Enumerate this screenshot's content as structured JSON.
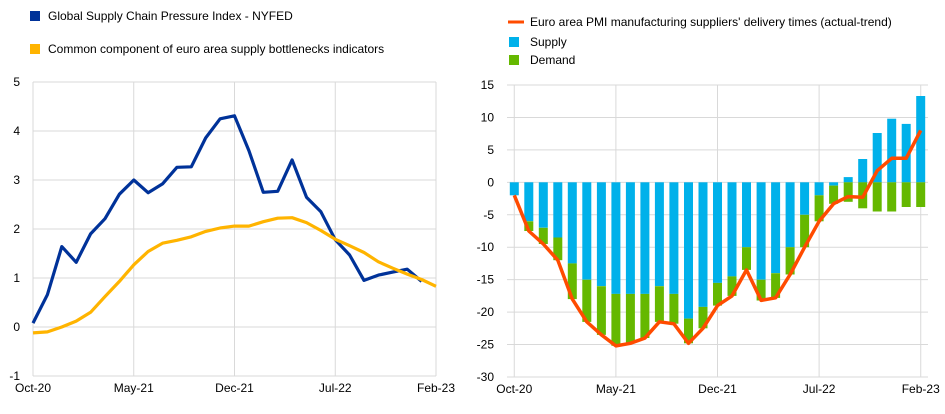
{
  "chart_data": [
    {
      "type": "line",
      "legend_position": "top-left",
      "grid": true,
      "x": [
        "Oct-20",
        "Nov-20",
        "Dec-20",
        "Jan-21",
        "Feb-21",
        "Mar-21",
        "Apr-21",
        "May-21",
        "Jun-21",
        "Jul-21",
        "Aug-21",
        "Sep-21",
        "Oct-21",
        "Nov-21",
        "Dec-21",
        "Jan-22",
        "Feb-22",
        "Mar-22",
        "Apr-22",
        "May-22",
        "Jun-22",
        "Jul-22",
        "Aug-22",
        "Sep-22",
        "Oct-22",
        "Nov-22",
        "Dec-22",
        "Jan-23",
        "Feb-23"
      ],
      "x_tick_labels": [
        "Oct-20",
        "May-21",
        "Dec-21",
        "Jul-22",
        "Feb-23"
      ],
      "ylim": [
        -1,
        5
      ],
      "y_ticks": [
        "-1",
        "0",
        "1",
        "2",
        "3",
        "4",
        "5"
      ],
      "series": [
        {
          "name": "Global Supply Chain Pressure Index - NYFED",
          "color": "#003299",
          "values": [
            0.08,
            0.66,
            1.64,
            1.32,
            1.9,
            2.21,
            2.71,
            3.0,
            2.74,
            2.92,
            3.26,
            3.27,
            3.86,
            4.25,
            4.31,
            3.6,
            2.75,
            2.77,
            3.41,
            2.65,
            2.35,
            1.78,
            1.47,
            0.95,
            1.06,
            1.12,
            1.18,
            0.93,
            null
          ]
        },
        {
          "name": "Common component of euro area supply bottlenecks indicators",
          "color": "#FFB400",
          "values": [
            -0.12,
            -0.1,
            0.0,
            0.12,
            0.3,
            0.62,
            0.93,
            1.27,
            1.54,
            1.71,
            1.77,
            1.84,
            1.95,
            2.02,
            2.06,
            2.06,
            2.15,
            2.22,
            2.23,
            2.13,
            1.97,
            1.79,
            1.66,
            1.52,
            1.33,
            1.2,
            1.08,
            0.97,
            0.83
          ]
        }
      ]
    },
    {
      "type": "bar",
      "stacked": true,
      "legend_position": "top-left",
      "grid": true,
      "x": [
        "Oct-20",
        "Nov-20",
        "Dec-20",
        "Jan-21",
        "Feb-21",
        "Mar-21",
        "Apr-21",
        "May-21",
        "Jun-21",
        "Jul-21",
        "Aug-21",
        "Sep-21",
        "Oct-21",
        "Nov-21",
        "Dec-21",
        "Jan-22",
        "Feb-22",
        "Mar-22",
        "Apr-22",
        "May-22",
        "Jun-22",
        "Jul-22",
        "Aug-22",
        "Sep-22",
        "Oct-22",
        "Nov-22",
        "Dec-22",
        "Jan-23",
        "Feb-23"
      ],
      "x_tick_labels": [
        "Oct-20",
        "May-21",
        "Dec-21",
        "Jul-22",
        "Feb-23"
      ],
      "ylim": [
        -30,
        15
      ],
      "y_ticks": [
        "15",
        "10",
        "5",
        "0",
        "-5",
        "-10",
        "-15",
        "-20",
        "-25",
        "-30"
      ],
      "series": [
        {
          "name": "Euro area PMI manufacturing suppliers' delivery times (actual-trend)",
          "type": "line",
          "color": "#FF4B00",
          "values": [
            -2.0,
            -7.5,
            -9.5,
            -12.0,
            -18.0,
            -21.5,
            -23.5,
            -25.2,
            -24.8,
            -24.0,
            -21.5,
            -21.8,
            -24.8,
            -22.5,
            -19.0,
            -17.5,
            -13.5,
            -18.2,
            -17.8,
            -14.2,
            -10.0,
            -6.0,
            -3.3,
            -2.2,
            -2.3,
            1.8,
            3.7,
            3.7,
            8.0
          ]
        },
        {
          "name": "Supply",
          "type": "bar",
          "color": "#00B1EA",
          "values": [
            -2.0,
            -6.0,
            -7.0,
            -8.5,
            -12.5,
            -15.0,
            -16.0,
            -17.2,
            -17.2,
            -17.2,
            -16.0,
            -17.2,
            -21.0,
            -19.2,
            -15.5,
            -14.5,
            -10.0,
            -15.0,
            -14.0,
            -10.0,
            -5.0,
            -2.0,
            -0.5,
            0.8,
            3.6,
            7.6,
            9.8,
            9.0,
            13.3
          ]
        },
        {
          "name": "Demand",
          "type": "bar",
          "color": "#65B800",
          "values": [
            0.0,
            -1.5,
            -2.5,
            -3.5,
            -5.5,
            -6.5,
            -7.5,
            -8.0,
            -7.6,
            -6.8,
            -5.5,
            -4.6,
            -3.8,
            -3.3,
            -3.5,
            -3.0,
            -3.5,
            -3.2,
            -3.8,
            -4.2,
            -5.0,
            -4.0,
            -2.8,
            -3.0,
            -4.0,
            -4.5,
            -4.5,
            -3.8,
            -3.8
          ]
        }
      ]
    }
  ]
}
